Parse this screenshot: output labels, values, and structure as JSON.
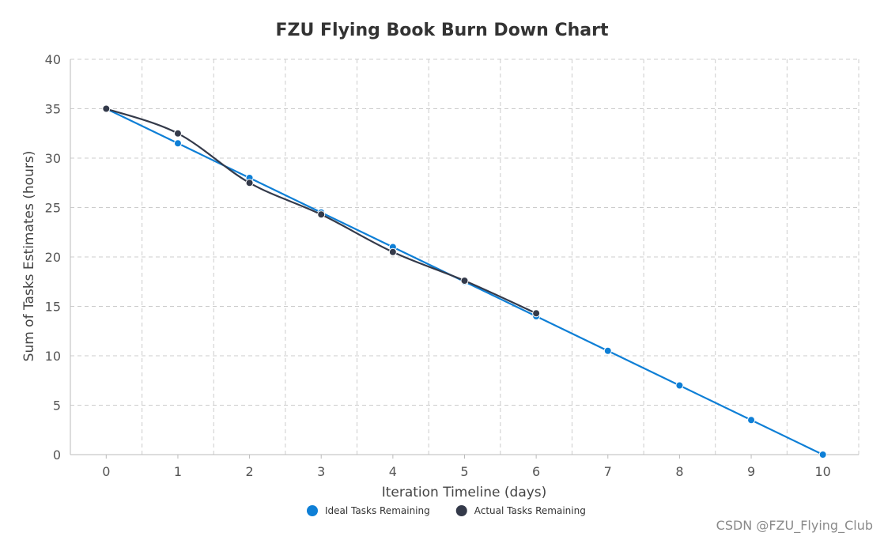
{
  "chart_data": {
    "type": "line",
    "title": "FZU Flying Book Burn Down Chart",
    "xlabel": "Iteration Timeline (days)",
    "ylabel": "Sum of Tasks Estimates (hours)",
    "x": [
      0,
      1,
      2,
      3,
      4,
      5,
      6,
      7,
      8,
      9,
      10
    ],
    "xlim": [
      -0.5,
      10.5
    ],
    "ylim": [
      0,
      40
    ],
    "yticks": [
      0,
      5,
      10,
      15,
      20,
      25,
      30,
      35,
      40
    ],
    "grid": true,
    "legend_position": "bottom-center",
    "series": [
      {
        "name": "Ideal Tasks Remaining",
        "color": "#0e7fd6",
        "x": [
          0,
          1,
          2,
          3,
          4,
          5,
          6,
          7,
          8,
          9,
          10
        ],
        "values": [
          35,
          31.5,
          28,
          24.5,
          21,
          17.5,
          14,
          10.5,
          7,
          3.5,
          0
        ]
      },
      {
        "name": "Actual Tasks Remaining",
        "color": "#343a4a",
        "x": [
          0,
          1,
          2,
          3,
          4,
          5,
          6
        ],
        "values": [
          35,
          32.5,
          27.5,
          24.3,
          20.5,
          17.6,
          14.3
        ]
      }
    ]
  },
  "watermark": "CSDN @FZU_Flying_Club"
}
